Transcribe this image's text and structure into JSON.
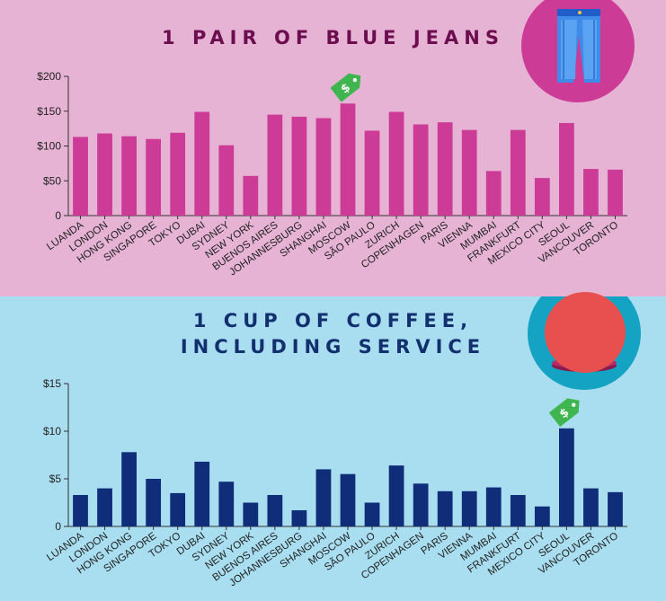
{
  "jeans": {
    "title": "1 PAIR OF BLUE JEANS",
    "icon": "jeans-icon",
    "circle_color": "#cc3b96",
    "bar_color": "#cc3b96",
    "highlight": "MOSCOW",
    "tag_icon": "price-tag-icon"
  },
  "coffee": {
    "title_line1": "1 CUP OF COFFEE,",
    "title_line2": "INCLUDING SERVICE",
    "icon": "coffee-cup-icon",
    "circle_color": "#14a3c3",
    "bar_color": "#0f2d78",
    "highlight": "SEOUL",
    "tag_icon": "price-tag-icon"
  },
  "chart_data": [
    {
      "type": "bar",
      "title": "1 PAIR OF BLUE JEANS",
      "categories": [
        "LUANDA",
        "LONDON",
        "HONG KONG",
        "SINGAPORE",
        "TOKYO",
        "DUBAI",
        "SYDNEY",
        "NEW YORK",
        "BUENOS AIRES",
        "JOHANNESBURG",
        "SHANGHAI",
        "MOSCOW",
        "SÃO PAULO",
        "ZURICH",
        "COPENHAGEN",
        "PARIS",
        "VIENNA",
        "MUMBAI",
        "FRANKFURT",
        "MEXICO CITY",
        "SEOUL",
        "VANCOUVER",
        "TORONTO"
      ],
      "values": [
        113,
        118,
        114,
        110,
        119,
        149,
        101,
        57,
        145,
        142,
        140,
        161,
        122,
        149,
        131,
        134,
        123,
        64,
        123,
        54,
        133,
        67,
        66
      ],
      "yticks": [
        "0",
        "$50",
        "$100",
        "$150",
        "$200"
      ],
      "ylim": [
        0,
        200
      ],
      "xlabel": "",
      "ylabel": ""
    },
    {
      "type": "bar",
      "title": "1 CUP OF COFFEE, INCLUDING SERVICE",
      "categories": [
        "LUANDA",
        "LONDON",
        "HONG KONG",
        "SINGAPORE",
        "TOKYO",
        "DUBAI",
        "SYDNEY",
        "NEW YORK",
        "BUENOS AIRES",
        "JOHANNESBURG",
        "SHANGHAI",
        "MOSCOW",
        "SÃO PAULO",
        "ZURICH",
        "COPENHAGEN",
        "PARIS",
        "VIENNA",
        "MUMBAI",
        "FRANKFURT",
        "MEXICO CITY",
        "SEOUL",
        "VANCOUVER",
        "TORONTO"
      ],
      "values": [
        3.3,
        4.0,
        7.8,
        5.0,
        3.5,
        6.8,
        4.7,
        2.5,
        3.3,
        1.7,
        6.0,
        5.5,
        2.5,
        6.4,
        4.5,
        3.7,
        3.7,
        4.1,
        3.3,
        2.1,
        10.3,
        4.0,
        3.6
      ],
      "yticks": [
        "0",
        "$5",
        "$10",
        "$15"
      ],
      "ylim": [
        0,
        15
      ],
      "xlabel": "",
      "ylabel": ""
    }
  ]
}
